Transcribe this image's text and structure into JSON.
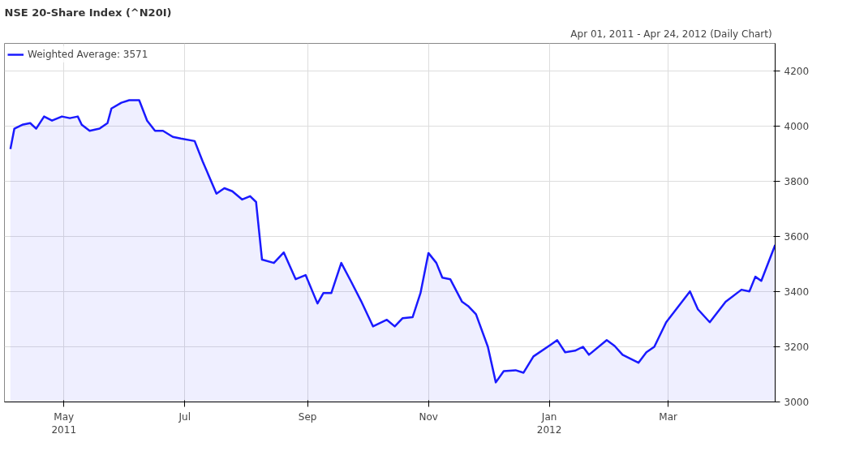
{
  "chart_data": {
    "type": "area",
    "title": "NSE 20-Share Index (^N20I)",
    "subtitle": "Apr 01, 2011 - Apr 24, 2012  (Daily Chart)",
    "x": [
      "2011-04-04",
      "2011-04-06",
      "2011-04-10",
      "2011-04-14",
      "2011-04-17",
      "2011-04-21",
      "2011-04-25",
      "2011-04-30",
      "2011-05-04",
      "2011-05-08",
      "2011-05-10",
      "2011-05-14",
      "2011-05-19",
      "2011-05-23",
      "2011-05-25",
      "2011-05-30",
      "2011-06-03",
      "2011-06-08",
      "2011-06-12",
      "2011-06-16",
      "2011-06-20",
      "2011-06-25",
      "2011-06-29",
      "2011-07-06",
      "2011-07-10",
      "2011-07-17",
      "2011-07-21",
      "2011-07-25",
      "2011-07-30",
      "2011-08-03",
      "2011-08-06",
      "2011-08-09",
      "2011-08-15",
      "2011-08-20",
      "2011-08-26",
      "2011-08-31",
      "2011-09-06",
      "2011-09-09",
      "2011-09-13",
      "2011-09-18",
      "2011-09-23",
      "2011-09-28",
      "2011-10-04",
      "2011-10-11",
      "2011-10-15",
      "2011-10-19",
      "2011-10-24",
      "2011-10-28",
      "2011-11-01",
      "2011-11-05",
      "2011-11-08",
      "2011-11-12",
      "2011-11-18",
      "2011-11-21",
      "2011-11-25",
      "2011-12-01",
      "2011-12-05",
      "2011-12-09",
      "2011-12-15",
      "2011-12-19",
      "2011-12-24",
      "2012-01-02",
      "2012-01-05",
      "2012-01-09",
      "2012-01-14",
      "2012-01-18",
      "2012-01-21",
      "2012-01-30",
      "2012-02-03",
      "2012-02-07",
      "2012-02-15",
      "2012-02-19",
      "2012-02-23",
      "2012-02-29",
      "2012-03-12",
      "2012-03-16",
      "2012-03-22",
      "2012-03-30",
      "2012-04-07",
      "2012-04-11",
      "2012-04-14",
      "2012-04-17",
      "2012-04-24"
    ],
    "series": [
      {
        "name": "Weighted Average: 3571",
        "color": "#1a1aff",
        "values": [
          3917,
          3991,
          4005,
          4011,
          3991,
          4035,
          4020,
          4035,
          4029,
          4035,
          4005,
          3983,
          3991,
          4011,
          4064,
          4085,
          4094,
          4094,
          4020,
          3983,
          3983,
          3961,
          3955,
          3946,
          3873,
          3755,
          3775,
          3764,
          3734,
          3746,
          3725,
          3516,
          3504,
          3542,
          3445,
          3460,
          3357,
          3395,
          3395,
          3504,
          3436,
          3366,
          3274,
          3298,
          3274,
          3304,
          3307,
          3395,
          3540,
          3504,
          3451,
          3445,
          3363,
          3348,
          3318,
          3200,
          3071,
          3112,
          3115,
          3106,
          3165,
          3209,
          3224,
          3180,
          3186,
          3200,
          3171,
          3224,
          3203,
          3171,
          3142,
          3180,
          3200,
          3289,
          3401,
          3336,
          3289,
          3363,
          3407,
          3401,
          3454,
          3439,
          3569
        ]
      }
    ],
    "xlim": [
      "2011-04-01",
      "2012-04-24"
    ],
    "xticks": [
      {
        "value": "2011-05-01",
        "label": "May\n2011"
      },
      {
        "value": "2011-07-01",
        "label": "Jul"
      },
      {
        "value": "2011-09-01",
        "label": "Sep"
      },
      {
        "value": "2011-11-01",
        "label": "Nov"
      },
      {
        "value": "2012-01-01",
        "label": "Jan\n2012"
      },
      {
        "value": "2012-03-01",
        "label": "Mar"
      }
    ],
    "ylim": [
      3000,
      4300
    ],
    "yticks": [
      3000,
      3200,
      3400,
      3600,
      3800,
      4000,
      4200
    ],
    "grid": true,
    "legend": "top left",
    "line_style": "solid"
  }
}
